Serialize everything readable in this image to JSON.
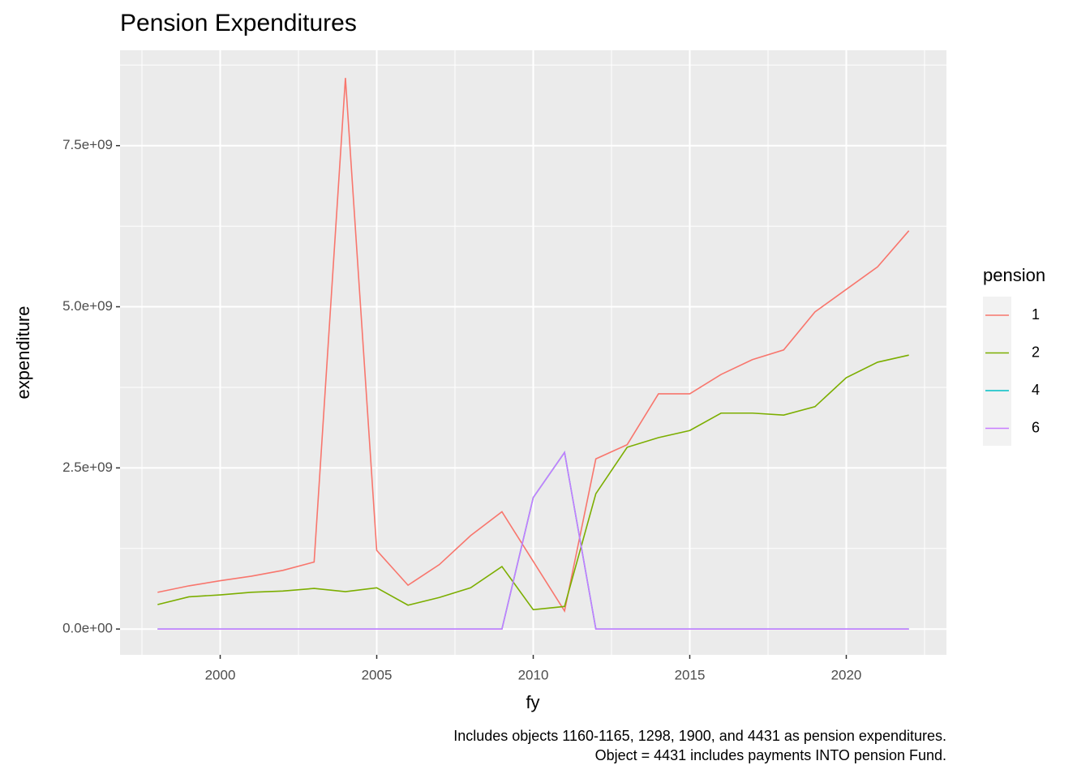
{
  "chart_data": {
    "type": "line",
    "title": "Pension Expenditures",
    "x_label": "fy",
    "y_label": "expenditure",
    "caption": [
      "Includes objects 1160-1165, 1298, 1900, and 4431 as pension expenditures.",
      "Object = 4431 includes payments INTO pension Fund."
    ],
    "legend_title": "pension",
    "legend_position": "right",
    "grid": true,
    "x": [
      1998,
      1999,
      2000,
      2001,
      2002,
      2003,
      2004,
      2005,
      2006,
      2007,
      2008,
      2009,
      2010,
      2011,
      2012,
      2013,
      2014,
      2015,
      2016,
      2017,
      2018,
      2019,
      2020,
      2021,
      2022
    ],
    "series": [
      {
        "name": "1",
        "color": "#F8766D",
        "values": [
          570000000,
          670000000,
          750000000,
          820000000,
          910000000,
          1040000000,
          8550000000,
          1220000000,
          680000000,
          1000000000,
          1450000000,
          1820000000,
          1050000000,
          280000000,
          2640000000,
          2860000000,
          3650000000,
          3650000000,
          3950000000,
          4180000000,
          4330000000,
          4920000000,
          5270000000,
          5620000000,
          6180000000
        ]
      },
      {
        "name": "2",
        "color": "#7CAE00",
        "values": [
          380000000,
          500000000,
          530000000,
          570000000,
          590000000,
          630000000,
          580000000,
          640000000,
          370000000,
          490000000,
          640000000,
          970000000,
          300000000,
          350000000,
          2100000000,
          2820000000,
          2970000000,
          3080000000,
          3350000000,
          3350000000,
          3320000000,
          3450000000,
          3900000000,
          4140000000,
          4250000000
        ]
      },
      {
        "name": "4",
        "color": "#00BFC4",
        "values": [
          0,
          0,
          0,
          0,
          0,
          0,
          0,
          0,
          0,
          0,
          0,
          0,
          2040000000,
          2740000000,
          0,
          0,
          0,
          0,
          0,
          0,
          0,
          0,
          0,
          0,
          0
        ]
      },
      {
        "name": "6",
        "color": "#C77CFF",
        "values": [
          0,
          0,
          0,
          0,
          0,
          0,
          0,
          0,
          0,
          0,
          0,
          0,
          2040000000,
          2740000000,
          0,
          0,
          0,
          0,
          0,
          0,
          0,
          0,
          0,
          0,
          0
        ]
      }
    ],
    "xlim": [
      1996.8,
      2023.2
    ],
    "xticks": [
      2000,
      2005,
      2010,
      2015,
      2020
    ],
    "ylim": [
      -400000000,
      8980000000
    ],
    "yticks": [
      {
        "value": 0,
        "label": "0.0e+00"
      },
      {
        "value": 2500000000,
        "label": "2.5e+09"
      },
      {
        "value": 5000000000,
        "label": "5.0e+09"
      },
      {
        "value": 7500000000,
        "label": "7.5e+09"
      }
    ]
  }
}
